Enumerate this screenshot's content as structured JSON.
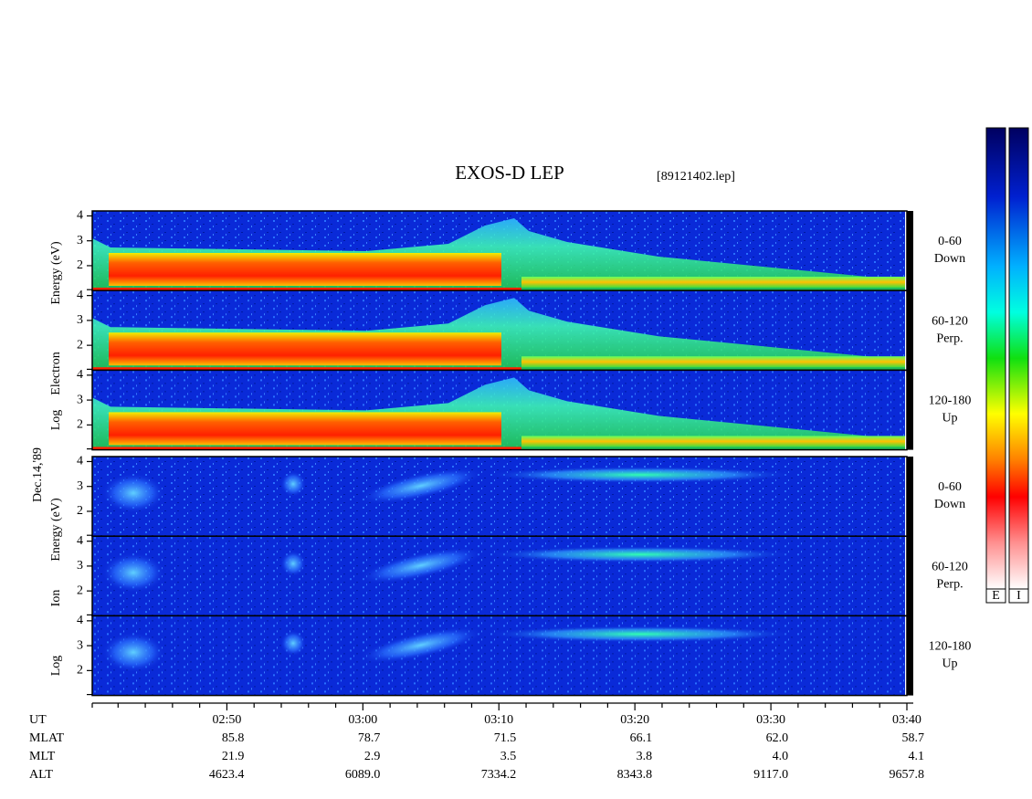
{
  "chart_data": {
    "type": "spectrogram",
    "title": "EXOS-D LEP",
    "subtitle": "[89121402.lep]",
    "date": "Dec.14,'89",
    "xlim": [
      160.1,
      220
    ],
    "xticks": [
      {
        "value": 170,
        "label": "02:50"
      },
      {
        "value": 180,
        "label": "03:00"
      },
      {
        "value": 190,
        "label": "03:10"
      },
      {
        "value": 200,
        "label": "03:20"
      },
      {
        "value": 210,
        "label": "03:30"
      },
      {
        "value": 220,
        "label": "03:40"
      }
    ],
    "xminorticks": [
      162,
      164,
      166,
      168,
      172,
      174,
      176,
      178,
      182,
      184,
      186,
      188,
      192,
      194,
      196,
      198,
      202,
      204,
      206,
      208,
      212,
      214,
      216,
      218
    ],
    "ylim": [
      1,
      4.2
    ],
    "yticks": [
      2,
      3,
      4
    ],
    "groups": [
      {
        "y_label": [
          "Log",
          "Electron",
          "Energy (eV)"
        ],
        "panels": [
          [
            "0-60",
            "Down"
          ],
          [
            "60-120",
            "Perp."
          ],
          [
            "120-180",
            "Up"
          ]
        ]
      },
      {
        "y_label": [
          "Log",
          "Ion",
          "Energy (eV)"
        ],
        "panels": [
          [
            "0-60",
            "Down"
          ],
          [
            "60-120",
            "Perp."
          ],
          [
            "120-180",
            "Up"
          ]
        ]
      }
    ],
    "ut_label": "UT",
    "ephemeris": [
      {
        "name": "MLAT",
        "values": [
          "85.8",
          "78.7",
          "71.5",
          "66.1",
          "62.0",
          "58.7"
        ]
      },
      {
        "name": "MLT",
        "values": [
          "21.9",
          "2.9",
          "3.5",
          "3.8",
          "4.0",
          "4.1"
        ]
      },
      {
        "name": "ALT",
        "values": [
          "4623.4",
          "6089.0",
          "7334.2",
          "8343.8",
          "9117.0",
          "9657.8"
        ]
      }
    ],
    "colorbar_labels": [
      "E",
      "I"
    ]
  }
}
